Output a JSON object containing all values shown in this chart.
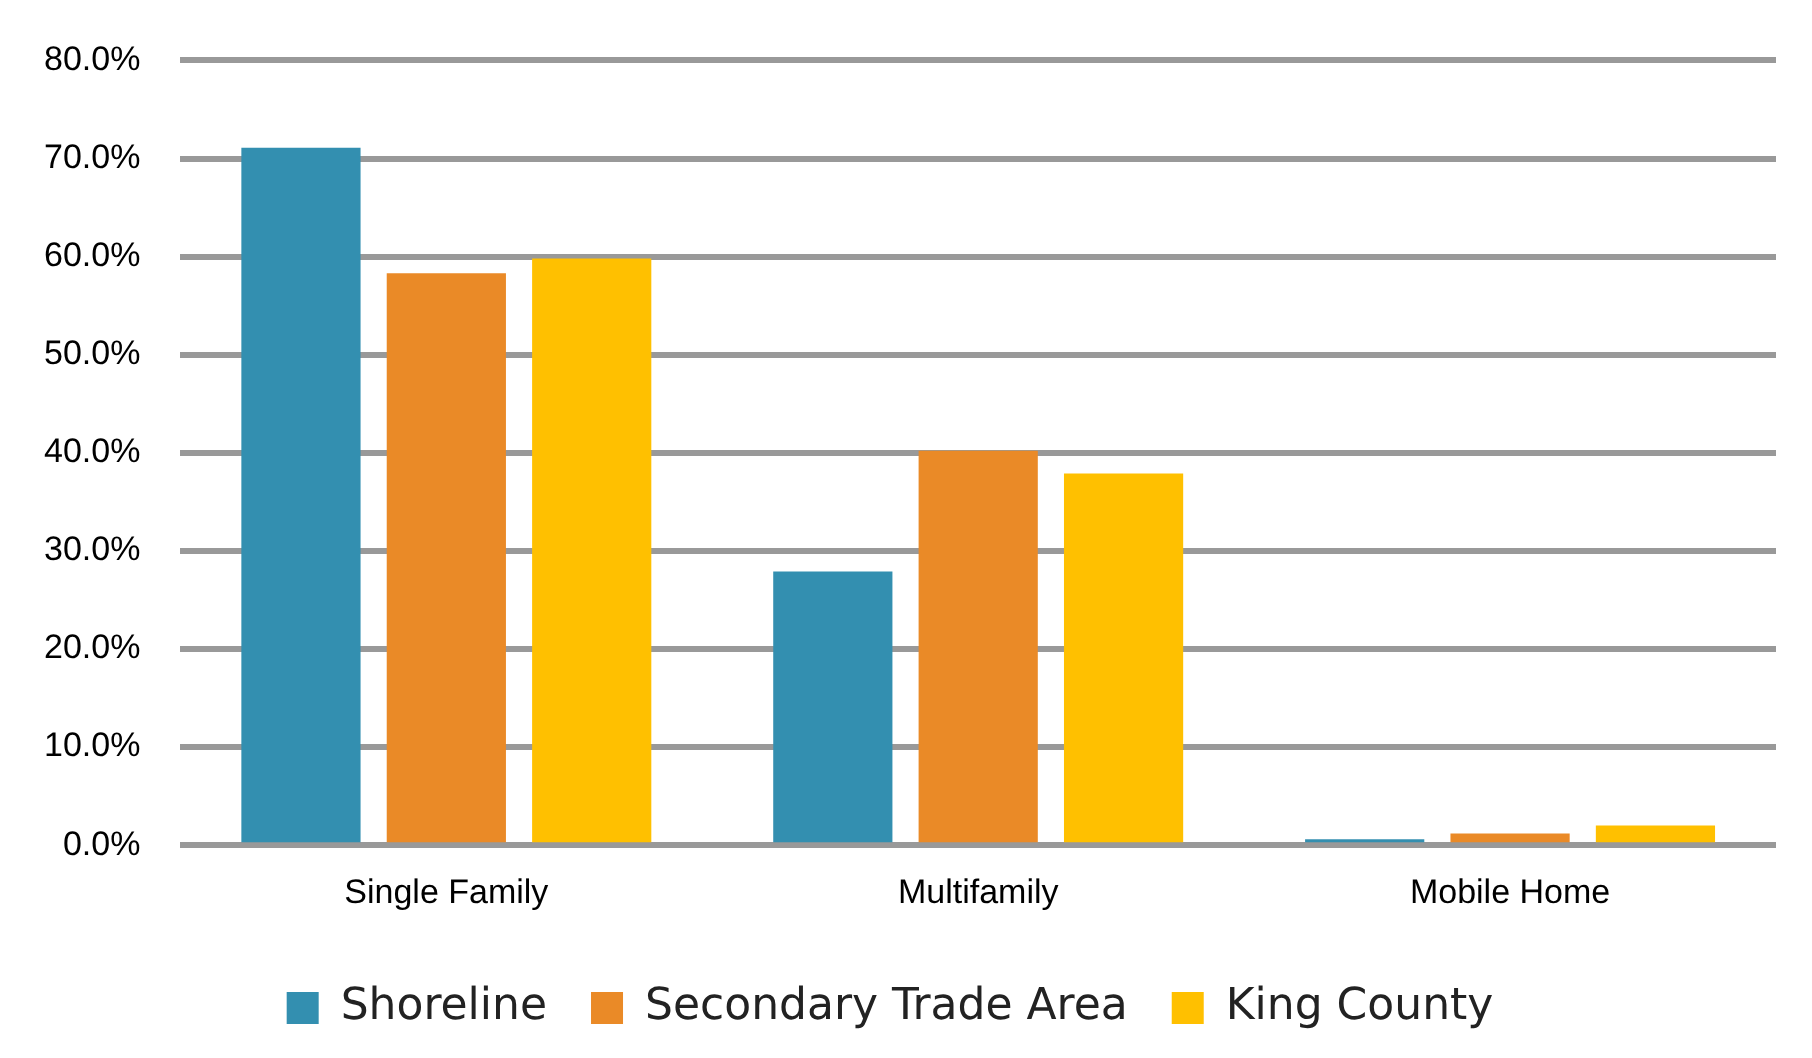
{
  "chart_data": {
    "type": "bar",
    "categories": [
      "Single Family",
      "Multifamily",
      "Mobile Home"
    ],
    "series": [
      {
        "name": "Shoreline",
        "color": "#338fb0",
        "values": [
          71.1,
          27.9,
          0.6
        ]
      },
      {
        "name": "Secondary Trade Area",
        "color": "#ea8a27",
        "values": [
          58.3,
          40.2,
          1.2
        ]
      },
      {
        "name": "King County",
        "color": "#ffc000",
        "values": [
          59.8,
          37.9,
          2.0
        ]
      }
    ],
    "ylim": [
      0,
      80
    ],
    "yticks": [
      {
        "value": 0,
        "label": "0.0%"
      },
      {
        "value": 10,
        "label": "10.0%"
      },
      {
        "value": 20,
        "label": "20.0%"
      },
      {
        "value": 30,
        "label": "30.0%"
      },
      {
        "value": 40,
        "label": "40.0%"
      },
      {
        "value": 50,
        "label": "50.0%"
      },
      {
        "value": 60,
        "label": "60.0%"
      },
      {
        "value": 70,
        "label": "70.0%"
      },
      {
        "value": 80,
        "label": "80.0%"
      }
    ],
    "grid": "y",
    "legend": "bottom"
  }
}
